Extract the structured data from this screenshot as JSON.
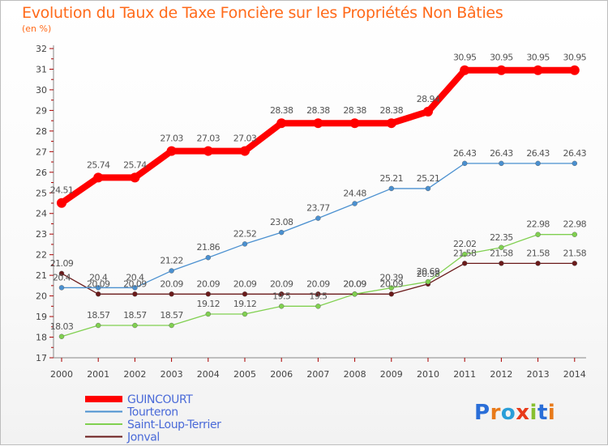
{
  "title": "Evolution du Taux de Taxe Foncière sur les Propriétés Non Bâties",
  "unit": "(en %)",
  "logo_text": "Proxiti",
  "chart_data": {
    "type": "line",
    "title": "Evolution du Taux de Taxe Foncière sur les Propriétés Non Bâties",
    "ylabel": "(en %)",
    "xlabel": "",
    "x": [
      "2000",
      "2001",
      "2002",
      "2003",
      "2004",
      "2005",
      "2006",
      "2007",
      "2008",
      "2009",
      "2010",
      "2011",
      "2012",
      "2013",
      "2014"
    ],
    "ylim": [
      17,
      32
    ],
    "yticks": [
      17,
      18,
      19,
      20,
      21,
      22,
      23,
      24,
      25,
      26,
      27,
      28,
      29,
      30,
      31,
      32
    ],
    "grid": false,
    "legend_position": "bottom-left",
    "series": [
      {
        "name": "GUINCOURT",
        "color": "#ff0000",
        "values": [
          24.51,
          25.74,
          25.74,
          27.03,
          27.03,
          27.03,
          28.38,
          28.38,
          28.38,
          28.38,
          28.94,
          30.95,
          30.95,
          30.95,
          30.95
        ],
        "labels": [
          "24.51",
          "25.74",
          "25.74",
          "27.03",
          "27.03",
          "27.03",
          "28.38",
          "28.38",
          "28.38",
          "28.38",
          "28.94",
          "30.95",
          "30.95",
          "30.95",
          "30.95"
        ]
      },
      {
        "name": "Tourteron",
        "color": "#4a90d0",
        "values": [
          20.4,
          20.4,
          20.4,
          21.22,
          21.86,
          22.52,
          23.08,
          23.77,
          24.48,
          25.21,
          25.21,
          26.43,
          26.43,
          26.43,
          26.43
        ],
        "labels": [
          "20.4",
          "20.4",
          "20.4",
          "21.22",
          "21.86",
          "22.52",
          "23.08",
          "23.77",
          "24.48",
          "25.21",
          "25.21",
          "26.43",
          "26.43",
          "26.43",
          "26.43"
        ]
      },
      {
        "name": "Saint-Loup-Terrier",
        "color": "#80d050",
        "values": [
          18.03,
          18.57,
          18.57,
          18.57,
          19.12,
          19.12,
          19.5,
          19.5,
          20.09,
          20.39,
          20.69,
          22.02,
          22.35,
          22.98,
          22.98
        ],
        "labels": [
          "18.03",
          "18.57",
          "18.57",
          "18.57",
          "19.12",
          "19.12",
          "19.5",
          "19.5",
          "20.09",
          "20.39",
          "20.69",
          "22.02",
          "22.35",
          "22.98",
          "22.98"
        ]
      },
      {
        "name": "Jonval",
        "color": "#6a1a1a",
        "values": [
          21.09,
          20.09,
          20.09,
          20.09,
          20.09,
          20.09,
          20.09,
          20.09,
          20.09,
          20.09,
          20.58,
          21.58,
          21.58,
          21.58,
          21.58
        ],
        "labels": [
          "21.09",
          "20.09",
          "20.09",
          "20.09",
          "20.09",
          "20.09",
          "20.09",
          "20.09",
          "20.09",
          "20.09",
          "20.58",
          "21.58",
          "21.58",
          "21.58",
          "21.58"
        ]
      }
    ]
  }
}
